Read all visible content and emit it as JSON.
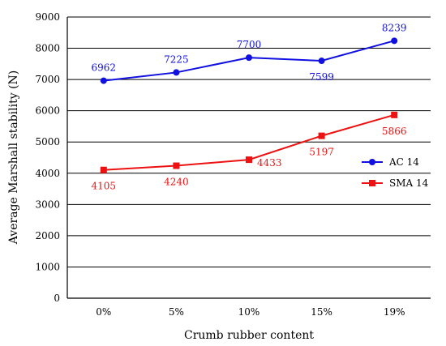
{
  "chart_data": {
    "type": "line",
    "title": "",
    "xlabel": "Crumb rubber content",
    "ylabel": "Average Marshall stability (N)",
    "categories": [
      "0%",
      "5%",
      "10%",
      "15%",
      "19%"
    ],
    "ylim": [
      0,
      9000
    ],
    "yticks": [
      0,
      1000,
      2000,
      3000,
      4000,
      5000,
      6000,
      7000,
      8000,
      9000
    ],
    "grid": "horizontal",
    "legend_position": "right",
    "series": [
      {
        "name": "AC 14",
        "values": [
          6962,
          7225,
          7700,
          7599,
          8239
        ],
        "labels": [
          "6962",
          "7225",
          "7700",
          "7599",
          "8239"
        ],
        "label_positions": [
          "above",
          "above",
          "above",
          "below",
          "above"
        ],
        "color": "#1010e0",
        "marker": "circle"
      },
      {
        "name": "SMA 14",
        "values": [
          4105,
          4240,
          4433,
          5197,
          5866
        ],
        "labels": [
          "4105",
          "4240",
          "4433",
          "5197",
          "5866"
        ],
        "label_positions": [
          "below",
          "below",
          "right",
          "below",
          "below"
        ],
        "color": "#ee1111",
        "marker": "square"
      }
    ]
  }
}
